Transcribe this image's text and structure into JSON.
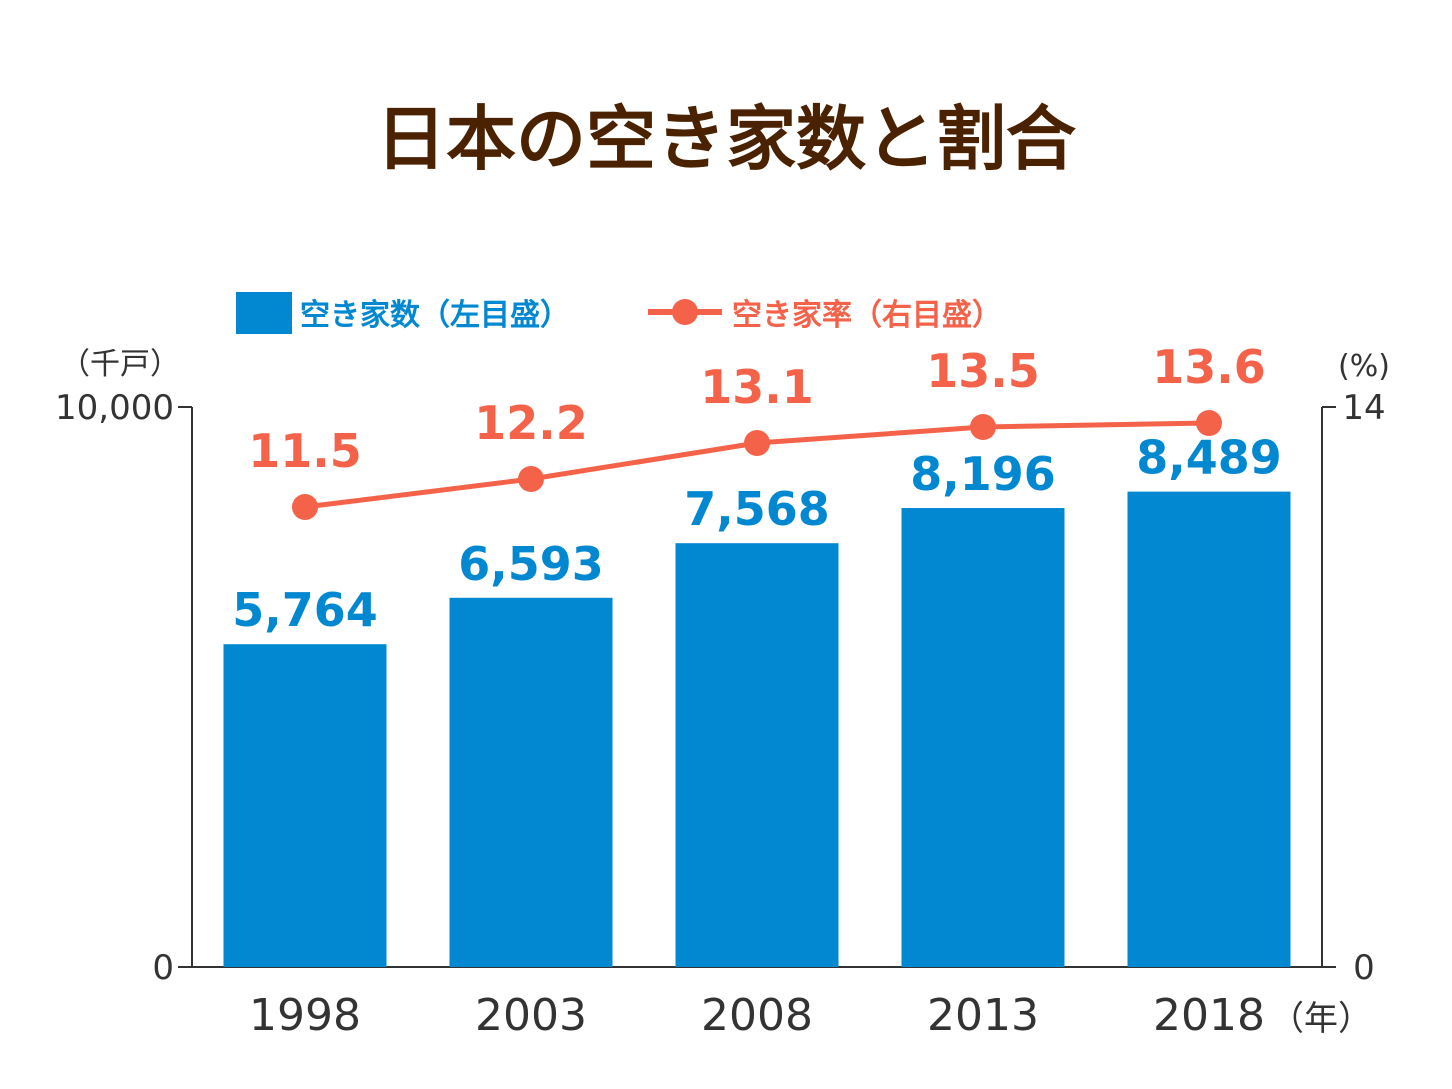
{
  "chart_data": {
    "type": "bar",
    "title": "日本の空き家数と割合",
    "categories": [
      "1998",
      "2003",
      "2008",
      "2013",
      "2018"
    ],
    "x_unit": "（年）",
    "series": [
      {
        "name": "空き家数（左目盛）",
        "chart": "bar",
        "axis": "left",
        "values": [
          5764,
          6593,
          7568,
          8196,
          8489
        ],
        "labels": [
          "5,764",
          "6,593",
          "7,568",
          "8,196",
          "8,489"
        ],
        "color": "#0288d1"
      },
      {
        "name": "空き家率（右目盛）",
        "chart": "line",
        "axis": "right",
        "values": [
          11.5,
          12.2,
          13.1,
          13.5,
          13.6
        ],
        "labels": [
          "11.5",
          "12.2",
          "13.1",
          "13.5",
          "13.6"
        ],
        "color": "#f4624a"
      }
    ],
    "y_left": {
      "unit": "（千戸）",
      "min": 0,
      "max": 10000,
      "ticks": [
        "0",
        "10,000"
      ]
    },
    "y_right": {
      "unit": "(%)",
      "min": 0,
      "max": 14,
      "ticks": [
        "0",
        "14"
      ]
    },
    "legend": "top-left",
    "grid": false,
    "colors": {
      "title": "#4a2200",
      "axis": "#333333"
    }
  }
}
